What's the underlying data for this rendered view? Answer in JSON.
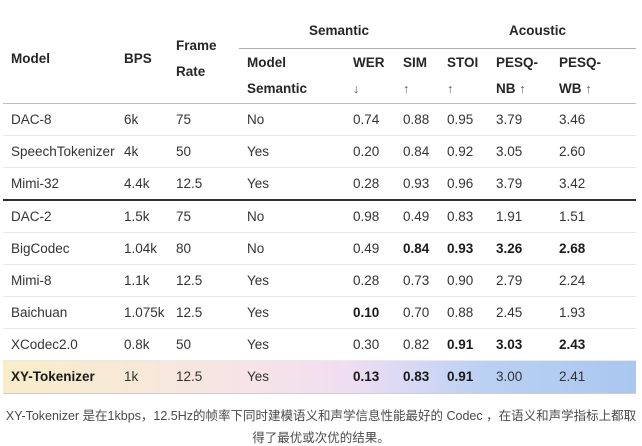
{
  "table": {
    "group_headers": [
      {
        "label": "Semantic"
      },
      {
        "label": "Acoustic"
      }
    ],
    "columns": [
      {
        "name": "model",
        "label": "Model",
        "sub": ""
      },
      {
        "name": "bps",
        "label": "BPS",
        "sub": ""
      },
      {
        "name": "frame-rate",
        "label": "Frame",
        "sub": "Rate"
      },
      {
        "name": "model-semantic",
        "label": "Model",
        "sub": "Semantic"
      },
      {
        "name": "wer",
        "label": "WER",
        "sub": "↓"
      },
      {
        "name": "sim",
        "label": "SIM",
        "sub": "↑"
      },
      {
        "name": "stoi",
        "label": "STOI",
        "sub": "↑"
      },
      {
        "name": "pesq-nb",
        "label": "PESQ-",
        "sub": "NB ↑"
      },
      {
        "name": "pesq-wb",
        "label": "PESQ-",
        "sub": "WB ↑"
      }
    ],
    "rows": [
      {
        "cells": [
          "DAC-8",
          "6k",
          "75",
          "No",
          "0.74",
          "0.88",
          "0.95",
          "3.79",
          "3.46"
        ],
        "bold": [],
        "section_start": false,
        "highlight": false
      },
      {
        "cells": [
          "SpeechTokenizer",
          "4k",
          "50",
          "Yes",
          "0.20",
          "0.84",
          "0.92",
          "3.05",
          "2.60"
        ],
        "bold": [],
        "section_start": false,
        "highlight": false
      },
      {
        "cells": [
          "Mimi-32",
          "4.4k",
          "12.5",
          "Yes",
          "0.28",
          "0.93",
          "0.96",
          "3.79",
          "3.42"
        ],
        "bold": [],
        "section_start": false,
        "highlight": false
      },
      {
        "cells": [
          "DAC-2",
          "1.5k",
          "75",
          "No",
          "0.98",
          "0.49",
          "0.83",
          "1.91",
          "1.51"
        ],
        "bold": [],
        "section_start": true,
        "highlight": false
      },
      {
        "cells": [
          "BigCodec",
          "1.04k",
          "80",
          "No",
          "0.49",
          "0.84",
          "0.93",
          "3.26",
          "2.68"
        ],
        "bold": [
          5,
          6,
          7,
          8
        ],
        "section_start": false,
        "highlight": false
      },
      {
        "cells": [
          "Mimi-8",
          "1.1k",
          "12.5",
          "Yes",
          "0.28",
          "0.73",
          "0.90",
          "2.79",
          "2.24"
        ],
        "bold": [],
        "section_start": false,
        "highlight": false
      },
      {
        "cells": [
          "Baichuan",
          "1.075k",
          "12.5",
          "Yes",
          "0.10",
          "0.70",
          "0.88",
          "2.45",
          "1.93"
        ],
        "bold": [
          4
        ],
        "section_start": false,
        "highlight": false
      },
      {
        "cells": [
          "XCodec2.0",
          "0.8k",
          "50",
          "Yes",
          "0.30",
          "0.82",
          "0.91",
          "3.03",
          "2.43"
        ],
        "bold": [
          6,
          7,
          8
        ],
        "section_start": false,
        "highlight": false
      },
      {
        "cells": [
          "XY-Tokenizer",
          "1k",
          "12.5",
          "Yes",
          "0.13",
          "0.83",
          "0.91",
          "3.00",
          "2.41"
        ],
        "bold": [
          0,
          4,
          5,
          6
        ],
        "section_start": false,
        "highlight": true
      }
    ]
  },
  "highlight_colors": {
    "gradient_left": "#f8edc8",
    "gradient_mid_pink": "#f0def1",
    "gradient_right": "#aac7f0"
  },
  "caption": "XY-Tokenizer 是在1kbps，12.5Hz的帧率下同时建模语义和声学信息性能最好的 Codec ，在语义和声学指标上都取得了最优或次优的结果。"
}
